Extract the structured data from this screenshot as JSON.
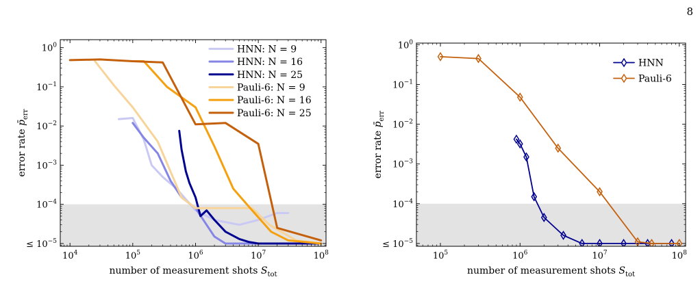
{
  "page_number": "8",
  "chart_data": [
    {
      "type": "line",
      "title": "",
      "xlabel": "number of measurement shots S_tot",
      "ylabel": "error rate p̄_err",
      "xscale": "log",
      "yscale": "log",
      "xlim": [
        7000,
        120000000
      ],
      "ylim": [
        8.5e-06,
        1.6
      ],
      "x_ticks": [
        {
          "value": 10000,
          "base": "10",
          "exp": "4"
        },
        {
          "value": 100000,
          "base": "10",
          "exp": "5"
        },
        {
          "value": 1000000,
          "base": "10",
          "exp": "6"
        },
        {
          "value": 10000000,
          "base": "10",
          "exp": "7"
        },
        {
          "value": 100000000,
          "base": "10",
          "exp": "8"
        }
      ],
      "y_ticks": [
        {
          "value": 1,
          "base": "10",
          "exp": "0"
        },
        {
          "value": 0.1,
          "base": "10",
          "exp": "−1"
        },
        {
          "value": 0.01,
          "base": "10",
          "exp": "−2"
        },
        {
          "value": 0.001,
          "base": "10",
          "exp": "−3"
        },
        {
          "value": 0.0001,
          "base": "10",
          "exp": "−4"
        },
        {
          "value": 1e-05,
          "base": "≤ 10",
          "exp": "−5"
        }
      ],
      "shaded_region": {
        "y_max": 0.0001,
        "color": "#e3e3e3"
      },
      "grid": false,
      "legend_position": "top-right",
      "markers": false,
      "series": [
        {
          "name": "HNN: N = 9",
          "color": "#c9c9f4",
          "x": [
            60000,
            100000,
            150000,
            200000,
            300000,
            500000,
            1000000,
            2000000,
            5000000,
            10000000,
            20000000,
            30000000
          ],
          "y": [
            0.015,
            0.016,
            0.0045,
            0.001,
            0.0005,
            0.00025,
            7e-05,
            4e-05,
            3e-05,
            4e-05,
            6e-05,
            6e-05
          ]
        },
        {
          "name": "HNN: N = 16",
          "color": "#8585e6",
          "x": [
            100000,
            150000,
            250000,
            400000,
            600000,
            1000000,
            1500000,
            2000000,
            3000000,
            10000000,
            100000000
          ],
          "y": [
            0.012,
            0.005,
            0.002,
            0.0004,
            0.00015,
            8e-05,
            3e-05,
            1.5e-05,
            1e-05,
            1e-05,
            1e-05
          ]
        },
        {
          "name": "HNN: N = 25",
          "color": "#000090",
          "x": [
            550000,
            600000,
            650000,
            700000,
            800000,
            1000000,
            1200000,
            1500000,
            2000000,
            3000000,
            5000000,
            7000000,
            10000000,
            100000000
          ],
          "y": [
            0.0075,
            0.0025,
            0.0013,
            0.0007,
            0.00035,
            0.00015,
            5e-05,
            7e-05,
            4e-05,
            2e-05,
            1.3e-05,
            1.1e-05,
            1e-05,
            1e-05
          ]
        },
        {
          "name": "Pauli-6: N = 9",
          "color": "#f7d49a",
          "x": [
            25000,
            50000,
            100000,
            250000,
            600000,
            1000000,
            3000000,
            8000000,
            15000000,
            40000000,
            100000000
          ],
          "y": [
            0.45,
            0.11,
            0.03,
            0.004,
            0.00015,
            8e-05,
            8e-05,
            8e-05,
            3e-05,
            1.2e-05,
            1e-05
          ]
        },
        {
          "name": "Pauli-6: N = 16",
          "color": "#f5a00f",
          "x": [
            100000,
            150000,
            350000,
            1000000,
            2000000,
            4000000,
            8000000,
            16000000,
            30000000,
            100000000
          ],
          "y": [
            0.45,
            0.45,
            0.1,
            0.03,
            0.003,
            0.00025,
            7e-05,
            2e-05,
            1.2e-05,
            1e-05
          ]
        },
        {
          "name": "Pauli-6: N = 25",
          "color": "#c4600c",
          "x": [
            10000,
            30000,
            100000,
            300000,
            1000000,
            3000000,
            10000000,
            20000000,
            100000000
          ],
          "y": [
            0.48,
            0.5,
            0.45,
            0.42,
            0.011,
            0.012,
            0.0035,
            2.5e-05,
            1.2e-05
          ]
        }
      ]
    },
    {
      "type": "line",
      "title": "",
      "xlabel": "number of measurement shots S_tot",
      "ylabel": "error rate p̄_err",
      "xscale": "log",
      "yscale": "log",
      "xlim": [
        50000,
        120000000
      ],
      "ylim": [
        8.5e-06,
        1.1
      ],
      "x_ticks": [
        {
          "value": 100000,
          "base": "10",
          "exp": "5"
        },
        {
          "value": 1000000,
          "base": "10",
          "exp": "6"
        },
        {
          "value": 10000000,
          "base": "10",
          "exp": "7"
        },
        {
          "value": 100000000,
          "base": "10",
          "exp": "8"
        }
      ],
      "y_ticks": [
        {
          "value": 1,
          "base": "10",
          "exp": "0"
        },
        {
          "value": 0.1,
          "base": "10",
          "exp": "−1"
        },
        {
          "value": 0.01,
          "base": "10",
          "exp": "−2"
        },
        {
          "value": 0.001,
          "base": "10",
          "exp": "−3"
        },
        {
          "value": 0.0001,
          "base": "10",
          "exp": "−4"
        },
        {
          "value": 1e-05,
          "base": "≤ 10",
          "exp": "−5"
        }
      ],
      "shaded_region": {
        "y_max": 0.0001,
        "color": "#e3e3e3"
      },
      "grid": false,
      "legend_position": "top-right",
      "markers": true,
      "marker": "thin-diamond",
      "series": [
        {
          "name": "HNN",
          "color": "#000090",
          "x": [
            900000,
            1000000,
            1200000,
            1500000,
            2000000,
            3500000,
            6000000,
            10000000,
            20000000,
            40000000,
            80000000
          ],
          "y": [
            0.0042,
            0.0032,
            0.0015,
            0.00015,
            4.5e-05,
            1.6e-05,
            1e-05,
            1e-05,
            1e-05,
            1e-05,
            1e-05
          ]
        },
        {
          "name": "Pauli-6",
          "color": "#c4600c",
          "x": [
            100000,
            300000,
            1000000,
            3000000,
            10000000,
            30000000,
            45000000,
            100000000
          ],
          "y": [
            0.5,
            0.45,
            0.048,
            0.0025,
            0.0002,
            1.1e-05,
            1e-05,
            1e-05
          ]
        }
      ]
    }
  ]
}
